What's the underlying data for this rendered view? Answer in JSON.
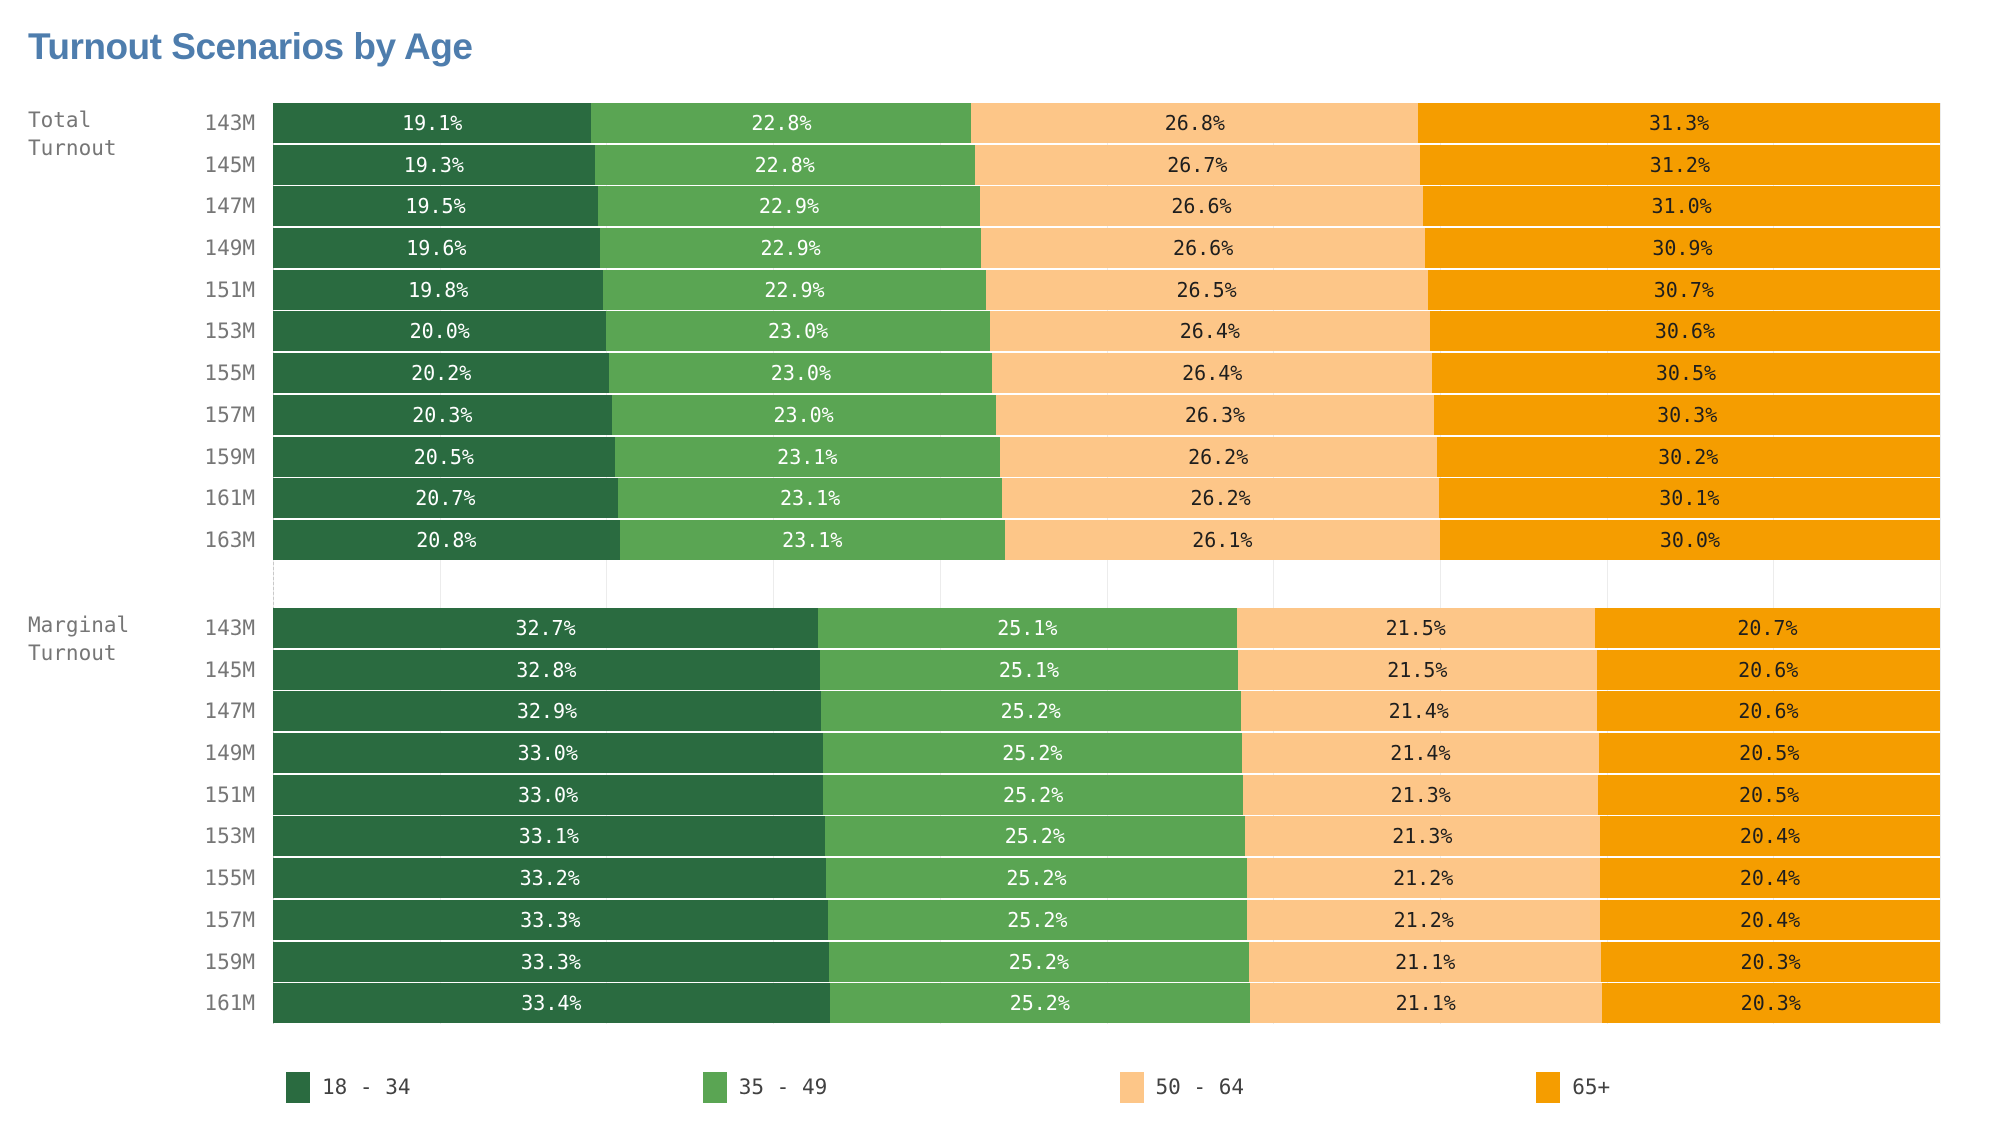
{
  "title": "Turnout Scenarios by Age",
  "colors": {
    "title": "#4e7dad",
    "axis_label": "#767676",
    "legend_text": "#414141",
    "gridline": "#ececec",
    "background": "#ffffff"
  },
  "legend": {
    "items": [
      "18 - 34",
      "35 - 49",
      "50 - 64",
      "65+"
    ]
  },
  "chart_data": {
    "type": "bar",
    "orientation": "horizontal",
    "stacked": true,
    "unit": "%",
    "xlim": [
      0,
      100
    ],
    "gridline_step_pct": 10,
    "legend_position": "bottom",
    "series": [
      {
        "name": "18 - 34",
        "color": "#2a6b40",
        "text_color": "#ffffff"
      },
      {
        "name": "35 - 49",
        "color": "#5aa553",
        "text_color": "#ffffff"
      },
      {
        "name": "50 - 64",
        "color": "#fdc688",
        "text_color": "#1e1e1e"
      },
      {
        "name": "65+",
        "color": "#f59d00",
        "text_color": "#1e1e1e"
      }
    ],
    "groups": [
      {
        "label": "Total Turnout",
        "categories": [
          "143M",
          "145M",
          "147M",
          "149M",
          "151M",
          "153M",
          "155M",
          "157M",
          "159M",
          "161M",
          "163M"
        ],
        "rows": [
          [
            19.1,
            22.8,
            26.8,
            31.3
          ],
          [
            19.3,
            22.8,
            26.7,
            31.2
          ],
          [
            19.5,
            22.9,
            26.6,
            31.0
          ],
          [
            19.6,
            22.9,
            26.6,
            30.9
          ],
          [
            19.8,
            22.9,
            26.5,
            30.7
          ],
          [
            20.0,
            23.0,
            26.4,
            30.6
          ],
          [
            20.2,
            23.0,
            26.4,
            30.5
          ],
          [
            20.3,
            23.0,
            26.3,
            30.3
          ],
          [
            20.5,
            23.1,
            26.2,
            30.2
          ],
          [
            20.7,
            23.1,
            26.2,
            30.1
          ],
          [
            20.8,
            23.1,
            26.1,
            30.0
          ]
        ]
      },
      {
        "label": "Marginal Turnout",
        "categories": [
          "143M",
          "145M",
          "147M",
          "149M",
          "151M",
          "153M",
          "155M",
          "157M",
          "159M",
          "161M"
        ],
        "rows": [
          [
            32.7,
            25.1,
            21.5,
            20.7
          ],
          [
            32.8,
            25.1,
            21.5,
            20.6
          ],
          [
            32.9,
            25.2,
            21.4,
            20.6
          ],
          [
            33.0,
            25.2,
            21.4,
            20.5
          ],
          [
            33.0,
            25.2,
            21.3,
            20.5
          ],
          [
            33.1,
            25.2,
            21.3,
            20.4
          ],
          [
            33.2,
            25.2,
            21.2,
            20.4
          ],
          [
            33.3,
            25.2,
            21.2,
            20.4
          ],
          [
            33.3,
            25.2,
            21.1,
            20.3
          ],
          [
            33.4,
            25.2,
            21.1,
            20.3
          ]
        ]
      }
    ]
  }
}
